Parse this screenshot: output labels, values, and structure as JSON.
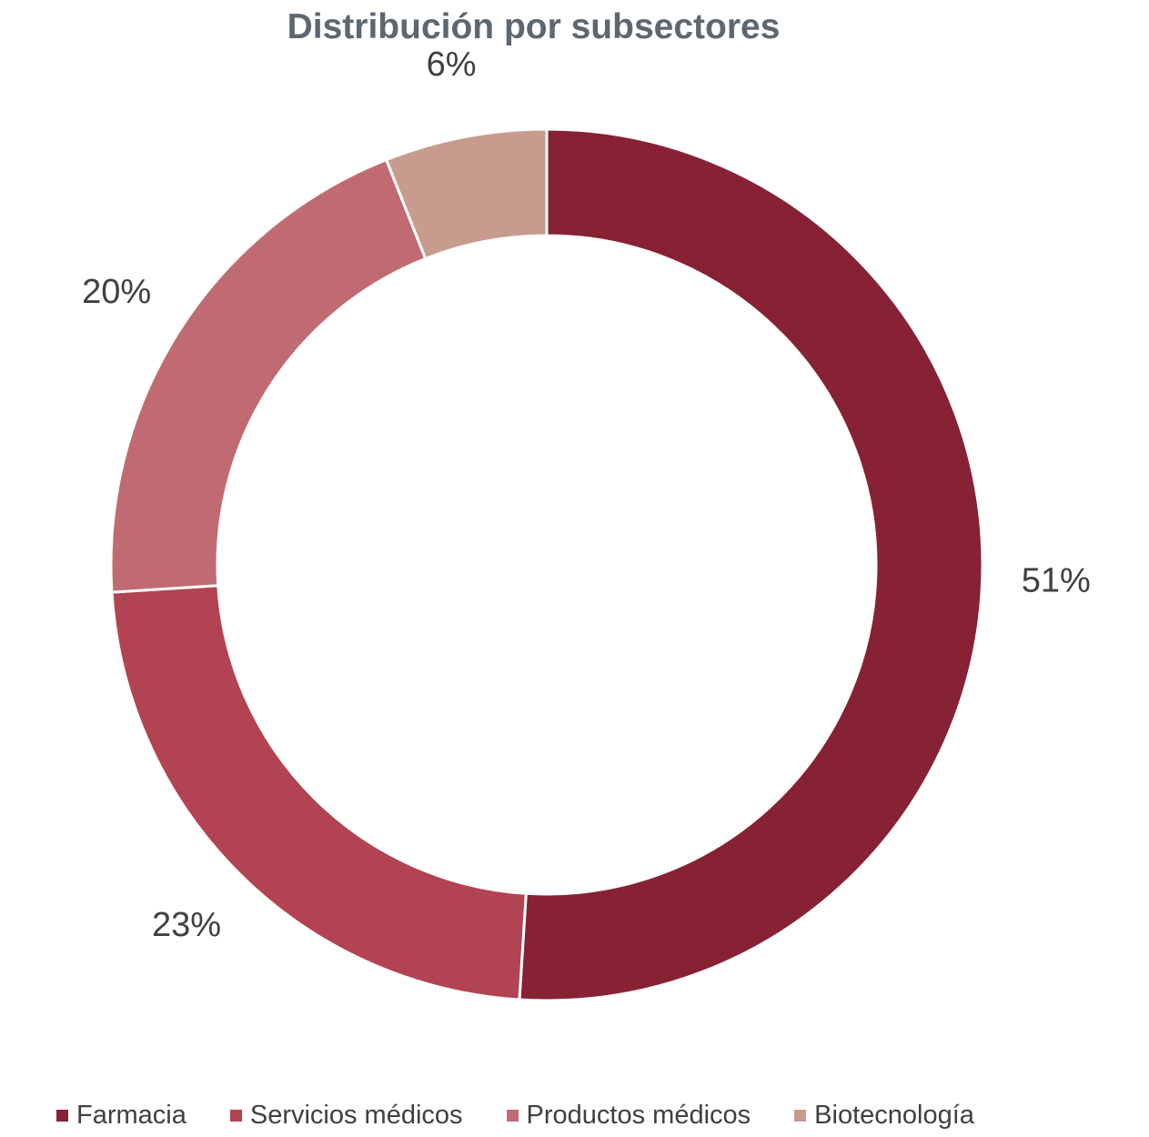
{
  "chart_data": {
    "type": "pie",
    "variant": "doughnut",
    "title": "Distribución por subsectores",
    "categories": [
      "Farmacia",
      "Servicios médicos",
      "Productos médicos",
      "Biotecnología"
    ],
    "values": [
      51,
      23,
      20,
      6
    ],
    "data_labels": [
      "51%",
      "23%",
      "20%",
      "6%"
    ],
    "unit": "%",
    "colors": [
      "#862234",
      "#b24352",
      "#c06b72",
      "#c89b8f"
    ],
    "legend_position": "bottom",
    "start_angle": "12 o'clock",
    "direction": "clockwise"
  }
}
